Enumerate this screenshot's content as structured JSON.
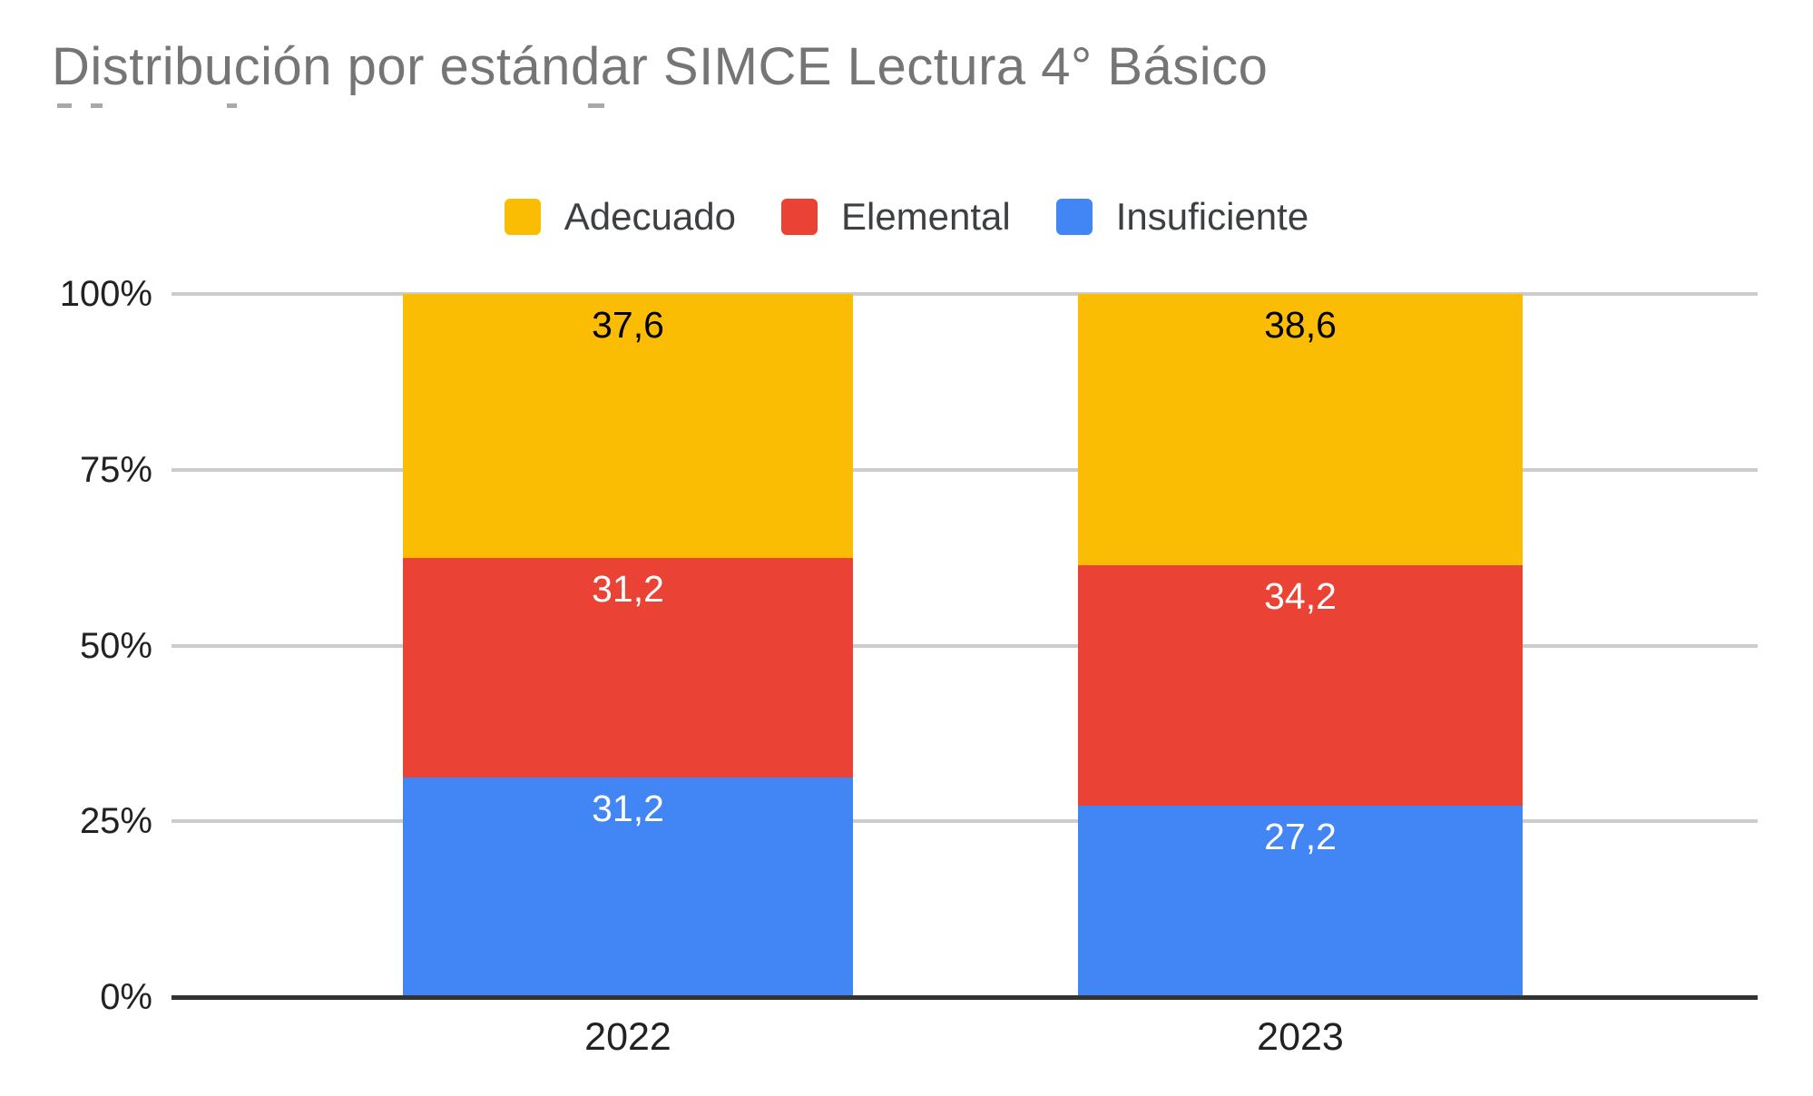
{
  "header": {
    "title": "Distribución por estándar SIMCE Lectura 4° Básico",
    "title_color": "#757575",
    "title_line2_clipped": true
  },
  "chart_data": {
    "type": "bar",
    "subtype": "stacked-100-percent-column",
    "title": "Distribución por estándar SIMCE Lectura 4° Básico",
    "categories": [
      "2022",
      "2023"
    ],
    "series": [
      {
        "name": "Adecuado",
        "color": "#FBBC04",
        "values": [
          37.6,
          38.6
        ],
        "labels": [
          "37,6",
          "38,6"
        ],
        "label_color": "#000000"
      },
      {
        "name": "Elemental",
        "color": "#EA4335",
        "values": [
          31.2,
          34.2
        ],
        "labels": [
          "31,2",
          "34,2"
        ],
        "label_color": "#FFFFFF"
      },
      {
        "name": "Insuficiente",
        "color": "#4285F4",
        "values": [
          31.2,
          27.2
        ],
        "labels": [
          "31,2",
          "27,2"
        ],
        "label_color": "#FFFFFF"
      }
    ],
    "xlabel": "",
    "ylabel": "",
    "ylim": [
      0,
      100
    ],
    "y_axis": {
      "ticks": [
        {
          "label": "100%",
          "value": 100
        },
        {
          "label": "75%",
          "value": 75
        },
        {
          "label": "50%",
          "value": 50
        },
        {
          "label": "25%",
          "value": 25
        },
        {
          "label": "0%",
          "value": 0
        }
      ]
    },
    "grid": true,
    "gridline_color": "#cccccc",
    "axis_line_color": "#333333",
    "legend_position": "top",
    "legend_entries": [
      "Adecuado",
      "Elemental",
      "Insuficiente"
    ]
  }
}
